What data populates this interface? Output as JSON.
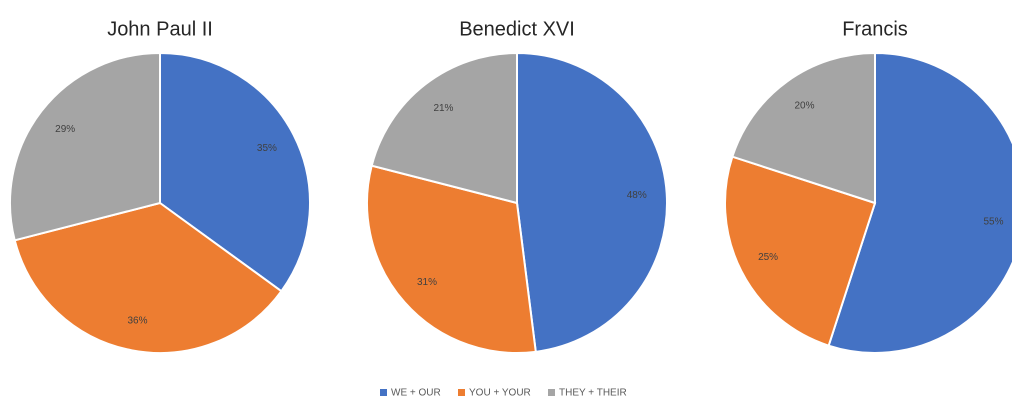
{
  "chart_data": [
    {
      "type": "pie",
      "title": "John Paul II",
      "values": [
        35,
        36,
        29
      ],
      "value_labels": [
        "35%",
        "36%",
        "29%"
      ]
    },
    {
      "type": "pie",
      "title": "Benedict XVI",
      "values": [
        48,
        31,
        21
      ],
      "value_labels": [
        "48%",
        "31%",
        "21%"
      ]
    },
    {
      "type": "pie",
      "title": "Francis",
      "values": [
        55,
        25,
        20
      ],
      "value_labels": [
        "55%",
        "25%",
        "20%"
      ]
    }
  ],
  "legend": {
    "categories": [
      "WE + OUR",
      "YOU + YOUR",
      "THEY + THEIR"
    ],
    "colors": [
      "#4472c4",
      "#ed7d31",
      "#a5a5a5"
    ]
  }
}
